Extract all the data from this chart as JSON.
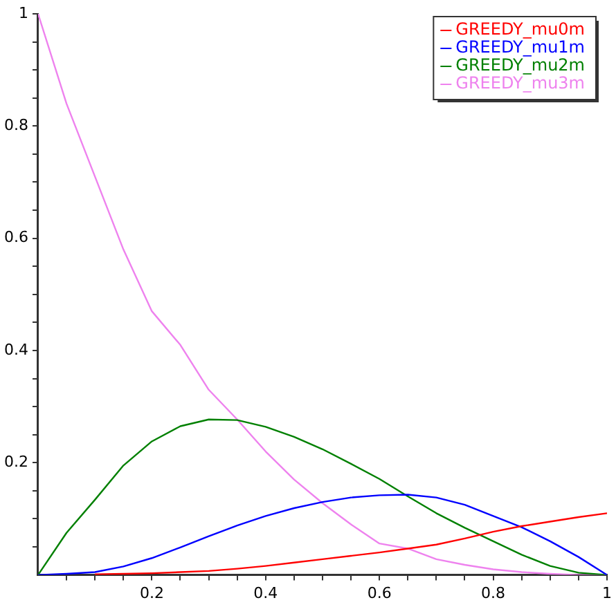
{
  "chart_data": {
    "type": "line",
    "x": [
      0,
      0.05,
      0.1,
      0.15,
      0.2,
      0.25,
      0.3,
      0.35,
      0.4,
      0.45,
      0.5,
      0.55,
      0.6,
      0.65,
      0.7,
      0.75,
      0.8,
      0.85,
      0.9,
      0.95,
      1
    ],
    "series": [
      {
        "name": "GREEDY_mu0m",
        "color": "#ff0000",
        "values": [
          null,
          null,
          0.001,
          0.002,
          0.003,
          0.005,
          0.007,
          0.011,
          0.016,
          0.022,
          0.028,
          0.034,
          0.04,
          0.047,
          0.054,
          0.065,
          0.077,
          0.087,
          0.095,
          0.103,
          0.11
        ]
      },
      {
        "name": "GREEDY_mu1m",
        "color": "#0000ff",
        "values": [
          0,
          0.002,
          0.005,
          0.015,
          0.03,
          0.049,
          0.069,
          0.088,
          0.105,
          0.119,
          0.13,
          0.138,
          0.142,
          0.143,
          0.138,
          0.125,
          0.105,
          0.085,
          0.06,
          0.032,
          0
        ]
      },
      {
        "name": "GREEDY_mu2m",
        "color": "#008000",
        "values": [
          0,
          0.075,
          0.134,
          0.195,
          0.238,
          0.265,
          0.277,
          0.276,
          0.264,
          0.246,
          0.224,
          0.198,
          0.171,
          0.14,
          0.11,
          0.084,
          0.06,
          0.036,
          0.016,
          0.004,
          0
        ]
      },
      {
        "name": "GREEDY_mu3m",
        "color": "#ee82ee",
        "values": [
          1,
          0.84,
          0.71,
          0.58,
          0.47,
          0.41,
          0.33,
          0.277,
          0.22,
          0.17,
          0.128,
          0.09,
          0.056,
          0.047,
          0.028,
          0.018,
          0.01,
          0.005,
          0.002,
          0,
          0
        ]
      }
    ],
    "xlim": [
      0,
      1
    ],
    "ylim": [
      0,
      1
    ],
    "xticks": [
      {
        "value": 0.05,
        "label": null
      },
      {
        "value": 0.1,
        "label": null
      },
      {
        "value": 0.15,
        "label": null
      },
      0.2,
      {
        "value": 0.25,
        "label": null
      },
      {
        "value": 0.3,
        "label": null
      },
      {
        "value": 0.35,
        "label": null
      },
      0.4,
      {
        "value": 0.45,
        "label": null
      },
      {
        "value": 0.5,
        "label": null
      },
      {
        "value": 0.55,
        "label": null
      },
      0.6,
      {
        "value": 0.65,
        "label": null
      },
      {
        "value": 0.7,
        "label": null
      },
      {
        "value": 0.75,
        "label": null
      },
      0.8,
      {
        "value": 0.85,
        "label": null
      },
      {
        "value": 0.9,
        "label": null
      },
      {
        "value": 0.95,
        "label": null
      },
      1
    ],
    "yticks": [
      {
        "value": 0.05,
        "label": null
      },
      {
        "value": 0.1,
        "label": null
      },
      {
        "value": 0.15,
        "label": null
      },
      0.2,
      {
        "value": 0.25,
        "label": null
      },
      {
        "value": 0.3,
        "label": null
      },
      {
        "value": 0.35,
        "label": null
      },
      0.4,
      {
        "value": 0.45,
        "label": null
      },
      {
        "value": 0.5,
        "label": null
      },
      {
        "value": 0.55,
        "label": null
      },
      0.6,
      {
        "value": 0.65,
        "label": null
      },
      {
        "value": 0.7,
        "label": null
      },
      {
        "value": 0.75,
        "label": null
      },
      0.8,
      {
        "value": 0.85,
        "label": null
      },
      {
        "value": 0.9,
        "label": null
      },
      {
        "value": 0.95,
        "label": null
      },
      1
    ],
    "grid": false,
    "legend": "top right",
    "marker": "none",
    "line_style": "solid"
  }
}
